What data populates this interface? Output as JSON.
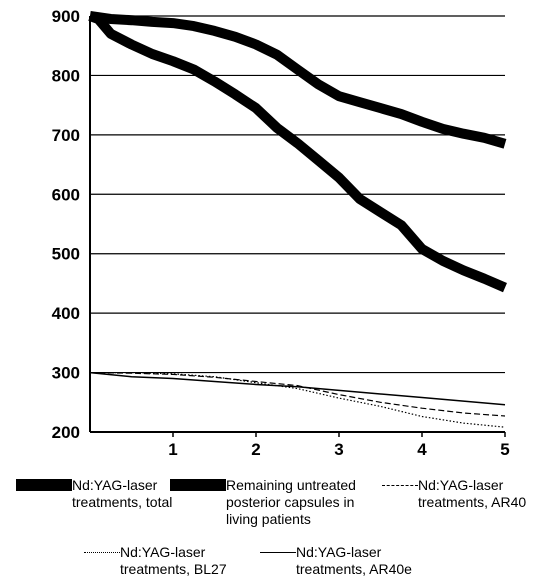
{
  "chart_data": {
    "type": "line",
    "title": "",
    "xlabel": "",
    "ylabel": "",
    "xlim": [
      0,
      5
    ],
    "ylim": [
      200,
      900
    ],
    "xticks": [
      1,
      2,
      3,
      4,
      5
    ],
    "yticks": [
      200,
      300,
      400,
      500,
      600,
      700,
      800,
      900
    ],
    "grid": "horizontal",
    "legend_position": "bottom",
    "series": [
      {
        "name": "Nd:YAG-laser treatments, total",
        "style": "thick",
        "color": "#000000",
        "x": [
          0,
          0.1,
          0.25,
          0.5,
          0.75,
          1.0,
          1.25,
          1.5,
          1.75,
          2.0,
          2.25,
          2.5,
          2.75,
          3.0,
          3.25,
          3.5,
          3.75,
          4.0,
          4.25,
          4.5,
          4.75,
          5.0
        ],
        "y": [
          900,
          895,
          870,
          852,
          836,
          824,
          810,
          790,
          768,
          745,
          712,
          686,
          657,
          628,
          592,
          570,
          548,
          508,
          488,
          472,
          458,
          443
        ]
      },
      {
        "name": "Remaining untreated posterior capsules in living patients",
        "style": "thick",
        "color": "#000000",
        "x": [
          0,
          0.25,
          0.5,
          0.75,
          1.0,
          1.25,
          1.5,
          1.75,
          2.0,
          2.25,
          2.5,
          2.75,
          3.0,
          3.25,
          3.5,
          3.75,
          4.0,
          4.25,
          4.5,
          4.75,
          5.0
        ],
        "y": [
          900,
          895,
          893,
          890,
          888,
          883,
          875,
          865,
          852,
          835,
          810,
          785,
          765,
          755,
          745,
          735,
          722,
          710,
          702,
          695,
          685
        ]
      },
      {
        "name": "Nd:YAG-laser treatments, AR40",
        "style": "dashed",
        "color": "#000000",
        "x": [
          0,
          0.5,
          1.0,
          1.5,
          2.0,
          2.5,
          3.0,
          3.5,
          4.0,
          4.5,
          5.0
        ],
        "y": [
          300,
          299,
          297,
          292,
          285,
          278,
          263,
          250,
          240,
          232,
          227
        ]
      },
      {
        "name": "Nd:YAG-laser treatments, BL27",
        "style": "dotted",
        "color": "#000000",
        "x": [
          0,
          0.5,
          1.0,
          1.5,
          2.0,
          2.5,
          3.0,
          3.5,
          4.0,
          4.5,
          5.0
        ],
        "y": [
          300,
          300,
          298,
          293,
          283,
          273,
          257,
          243,
          226,
          215,
          208
        ]
      },
      {
        "name": "Nd:YAG-laser treatments, AR40e",
        "style": "solid",
        "color": "#000000",
        "x": [
          0,
          0.5,
          1.0,
          1.5,
          2.0,
          2.5,
          3.0,
          3.5,
          4.0,
          4.5,
          5.0
        ],
        "y": [
          300,
          293,
          290,
          285,
          280,
          276,
          270,
          264,
          258,
          252,
          246
        ]
      }
    ]
  },
  "legend": [
    {
      "label": "Nd:YAG-laser\ntreatments, total",
      "style": "thick"
    },
    {
      "label": "Remaining untreated\nposterior capsules in\nliving patients",
      "style": "thick"
    },
    {
      "label": "Nd:YAG-laser\ntreatments, AR40",
      "style": "dashed"
    },
    {
      "label": "Nd:YAG-laser\ntreatments, BL27",
      "style": "dotted"
    },
    {
      "label": "Nd:YAG-laser\ntreatments, AR40e",
      "style": "solid"
    }
  ]
}
